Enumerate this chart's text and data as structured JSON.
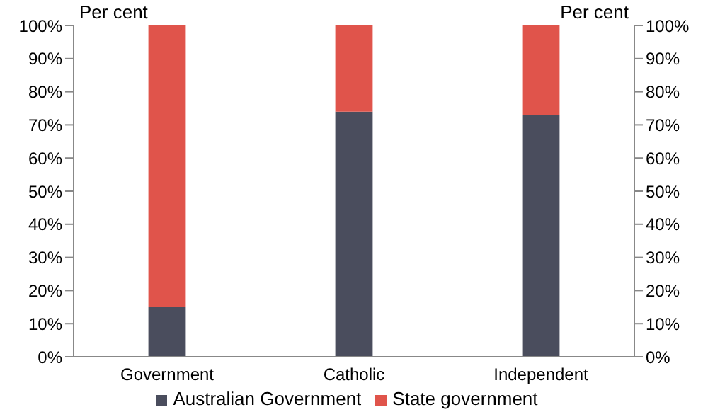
{
  "chart_data": {
    "type": "bar",
    "stacked": true,
    "categories": [
      "Government",
      "Catholic",
      "Independent"
    ],
    "series": [
      {
        "name": "Australian Government",
        "color": "#4a4d5d",
        "values": [
          15,
          74,
          73
        ]
      },
      {
        "name": "State government",
        "color": "#e0544b",
        "values": [
          85,
          26,
          27
        ]
      }
    ],
    "ylabel": "Per cent",
    "y2label": "Per cent",
    "ylim": [
      0,
      100
    ],
    "yticks": [
      {
        "value": 0,
        "label": "0%"
      },
      {
        "value": 10,
        "label": "10%"
      },
      {
        "value": 20,
        "label": "20%"
      },
      {
        "value": 30,
        "label": "30%"
      },
      {
        "value": 40,
        "label": "40%"
      },
      {
        "value": 50,
        "label": "50%"
      },
      {
        "value": 60,
        "label": "60%"
      },
      {
        "value": 70,
        "label": "70%"
      },
      {
        "value": 80,
        "label": "80%"
      },
      {
        "value": 90,
        "label": "90%"
      },
      {
        "value": 100,
        "label": "100%"
      }
    ],
    "y2lim": [
      0,
      100
    ],
    "y2ticks": [
      {
        "value": 0,
        "label": "0%"
      },
      {
        "value": 10,
        "label": "10%"
      },
      {
        "value": 20,
        "label": "20%"
      },
      {
        "value": 30,
        "label": "30%"
      },
      {
        "value": 40,
        "label": "40%"
      },
      {
        "value": 50,
        "label": "50%"
      },
      {
        "value": 60,
        "label": "60%"
      },
      {
        "value": 70,
        "label": "70%"
      },
      {
        "value": 80,
        "label": "80%"
      },
      {
        "value": 90,
        "label": "90%"
      },
      {
        "value": 100,
        "label": "100%"
      }
    ],
    "grid": false,
    "legend": "bottom"
  }
}
